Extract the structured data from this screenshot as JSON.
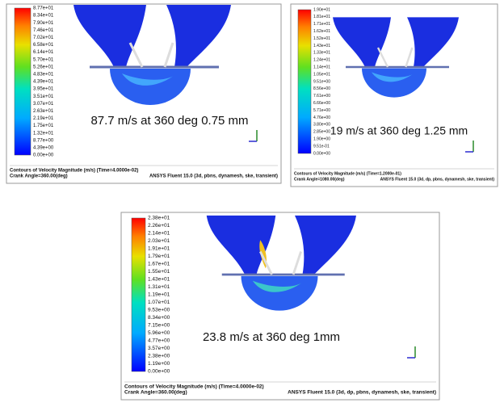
{
  "panels": [
    {
      "colorbar_labels": [
        "8.77e+01",
        "8.34e+01",
        "7.90e+01",
        "7.46e+01",
        "7.02e+01",
        "6.58e+01",
        "6.14e+01",
        "5.70e+01",
        "5.26e+01",
        "4.83e+01",
        "4.39e+01",
        "3.95e+01",
        "3.51e+01",
        "3.07e+01",
        "2.63e+01",
        "2.19e+01",
        "1.75e+01",
        "1.32e+01",
        "8.77e+00",
        "4.39e+00",
        "0.00e+00"
      ],
      "caption": "87.7 m/s at 360 deg 0.75 mm",
      "footer_left": [
        "Contours of Velocity Magnitude (m/s)  (Time=4.0000e-02)",
        "Crank Angle=360.00(deg)"
      ],
      "footer_right": "ANSYS Fluent 15.0 (3d, pbns, dynamesh, ske, transient)"
    },
    {
      "colorbar_labels": [
        "1.90e+01",
        "1.81e+01",
        "1.71e+01",
        "1.62e+01",
        "1.52e+01",
        "1.43e+01",
        "1.33e+01",
        "1.24e+01",
        "1.14e+01",
        "1.05e+01",
        "9.51e+00",
        "8.56e+00",
        "7.61e+00",
        "6.66e+00",
        "5.71e+00",
        "4.76e+00",
        "3.80e+00",
        "2.85e+00",
        "1.90e+00",
        "9.51e-01",
        "0.00e+00"
      ],
      "caption": "19 m/s at 360 deg 1.25 mm",
      "footer_left": [
        "Contours of Velocity Magnitude (m/s)  (Time=1.2000e-01)",
        "Crank Angle=1080.00(deg)"
      ],
      "footer_right": "ANSYS Fluent 15.0 (3d, dp, pbns, dynamesh, ske, transient)"
    },
    {
      "colorbar_labels": [
        "2.38e+01",
        "2.26e+01",
        "2.14e+01",
        "2.03e+01",
        "1.91e+01",
        "1.79e+01",
        "1.67e+01",
        "1.55e+01",
        "1.43e+01",
        "1.31e+01",
        "1.19e+01",
        "1.07e+01",
        "9.53e+00",
        "8.34e+00",
        "7.15e+00",
        "5.96e+00",
        "4.77e+00",
        "3.57e+00",
        "2.38e+00",
        "1.19e+00",
        "0.00e+00"
      ],
      "caption": "23.8 m/s at 360 deg 1mm",
      "footer_left": [
        "Contours of Velocity Magnitude (m/s)  (Time=4.0000e-02)",
        "Crank Angle=360.00(deg)"
      ],
      "footer_right": "ANSYS Fluent 15.0 (3d, dp, pbns, dynamesh, ske, transient)"
    }
  ]
}
